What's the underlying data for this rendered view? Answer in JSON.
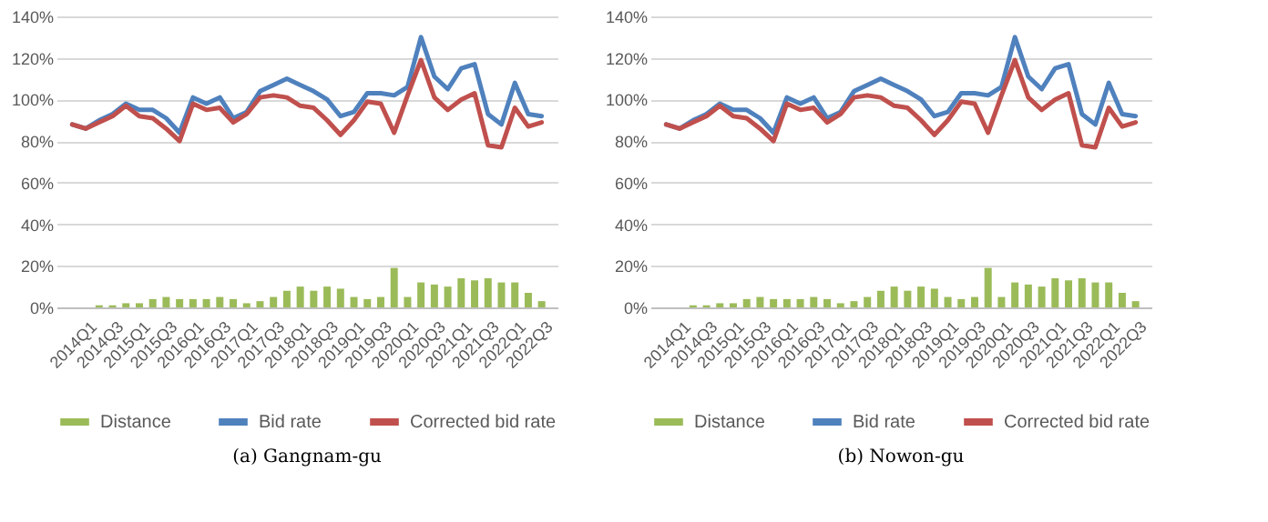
{
  "chart_data": [
    {
      "type": "line",
      "title": "(a) Gangnam-gu",
      "categories": [
        "2014Q1",
        null,
        "2014Q3",
        null,
        "2015Q1",
        null,
        "2015Q3",
        null,
        "2016Q1",
        null,
        "2016Q3",
        null,
        "2017Q1",
        null,
        "2017Q3",
        null,
        "2018Q1",
        null,
        "2018Q3",
        null,
        "2019Q1",
        null,
        "2019Q3",
        null,
        "2020Q1",
        null,
        "2020Q3",
        null,
        "2021Q1",
        null,
        "2021Q3",
        null,
        "2022Q1",
        null,
        "2022Q3",
        null
      ],
      "series": [
        {
          "name": "Distance",
          "type": "bar",
          "color": "#9bbb59",
          "values": [
            0,
            0,
            1,
            1,
            2,
            2,
            4,
            5,
            4,
            4,
            4,
            5,
            4,
            2,
            3,
            5,
            8,
            10,
            8,
            10,
            9,
            5,
            4,
            5,
            19,
            5,
            12,
            11,
            10,
            14,
            13,
            14,
            12,
            12,
            7,
            3
          ]
        },
        {
          "name": "Bid rate",
          "color": "#4f81bd",
          "values": [
            88,
            86,
            90,
            93,
            98,
            95,
            95,
            91,
            84,
            101,
            98,
            101,
            91,
            94,
            104,
            107,
            110,
            107,
            104,
            100,
            92,
            94,
            103,
            103,
            102,
            106,
            130,
            111,
            105,
            115,
            117,
            93,
            88,
            108,
            93,
            92
          ]
        },
        {
          "name": "Corrected bid rate",
          "color": "#c0504d",
          "values": [
            88,
            86,
            89,
            92,
            97,
            92,
            91,
            86,
            80,
            98,
            95,
            96,
            89,
            93,
            101,
            102,
            101,
            97,
            96,
            90,
            83,
            90,
            99,
            98,
            84,
            102,
            119,
            101,
            95,
            100,
            103,
            78,
            77,
            96,
            87,
            89
          ]
        }
      ],
      "ylim": [
        0,
        140
      ],
      "yticks": [
        {
          "value": 0,
          "label": "0%"
        },
        {
          "value": 20,
          "label": "20%"
        },
        {
          "value": 40,
          "label": "40%"
        },
        {
          "value": 60,
          "label": "60%"
        },
        {
          "value": 80,
          "label": "80%"
        },
        {
          "value": 100,
          "label": "100%"
        },
        {
          "value": 120,
          "label": "120%"
        },
        {
          "value": 140,
          "label": "140%"
        }
      ],
      "grid": "y",
      "legend": "bottom"
    },
    {
      "type": "line",
      "title": "(b) Nowon-gu",
      "categories": [
        "2014Q1",
        null,
        "2014Q3",
        null,
        "2015Q1",
        null,
        "2015Q3",
        null,
        "2016Q1",
        null,
        "2016Q3",
        null,
        "2017Q1",
        null,
        "2017Q3",
        null,
        "2018Q1",
        null,
        "2018Q3",
        null,
        "2019Q1",
        null,
        "2019Q3",
        null,
        "2020Q1",
        null,
        "2020Q3",
        null,
        "2021Q1",
        null,
        "2021Q3",
        null,
        "2022Q1",
        null,
        "2022Q3",
        null
      ],
      "series": [
        {
          "name": "Distance",
          "type": "bar",
          "color": "#9bbb59",
          "values": [
            0,
            0,
            1,
            1,
            2,
            2,
            4,
            5,
            4,
            4,
            4,
            5,
            4,
            2,
            3,
            5,
            8,
            10,
            8,
            10,
            9,
            5,
            4,
            5,
            19,
            5,
            12,
            11,
            10,
            14,
            13,
            14,
            12,
            12,
            7,
            3
          ]
        },
        {
          "name": "Bid rate",
          "color": "#4f81bd",
          "values": [
            88,
            86,
            90,
            93,
            98,
            95,
            95,
            91,
            84,
            101,
            98,
            101,
            91,
            94,
            104,
            107,
            110,
            107,
            104,
            100,
            92,
            94,
            103,
            103,
            102,
            106,
            130,
            111,
            105,
            115,
            117,
            93,
            88,
            108,
            93,
            92
          ]
        },
        {
          "name": "Corrected bid rate",
          "color": "#c0504d",
          "values": [
            88,
            86,
            89,
            92,
            97,
            92,
            91,
            86,
            80,
            98,
            95,
            96,
            89,
            93,
            101,
            102,
            101,
            97,
            96,
            90,
            83,
            90,
            99,
            98,
            84,
            102,
            119,
            101,
            95,
            100,
            103,
            78,
            77,
            96,
            87,
            89
          ]
        }
      ],
      "ylim": [
        0,
        140
      ],
      "yticks": [
        {
          "value": 0,
          "label": "0%"
        },
        {
          "value": 20,
          "label": "20%"
        },
        {
          "value": 40,
          "label": "40%"
        },
        {
          "value": 60,
          "label": "60%"
        },
        {
          "value": 80,
          "label": "80%"
        },
        {
          "value": 100,
          "label": "100%"
        },
        {
          "value": 120,
          "label": "120%"
        },
        {
          "value": 140,
          "label": "140%"
        }
      ],
      "grid": "y",
      "legend": "bottom"
    }
  ]
}
